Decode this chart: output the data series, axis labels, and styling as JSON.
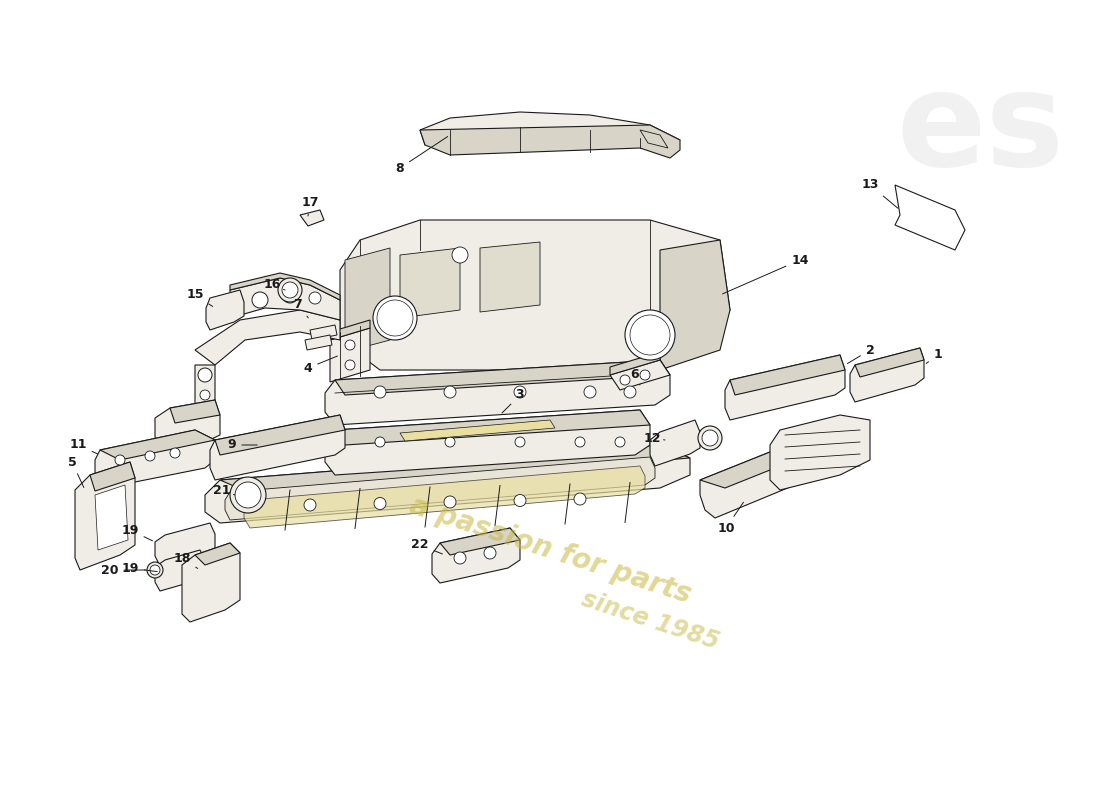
{
  "background_color": "#ffffff",
  "line_color": "#1a1a1a",
  "part_fill": "#f0ede6",
  "part_fill_dark": "#d8d4c8",
  "part_fill_yellow": "#e8dfa0",
  "watermark_text1": "a passion for parts",
  "watermark_color": "#c8b840",
  "logo_text": "es",
  "logo_color": "#d8d8d8",
  "callout_font": 9,
  "lw": 0.8
}
